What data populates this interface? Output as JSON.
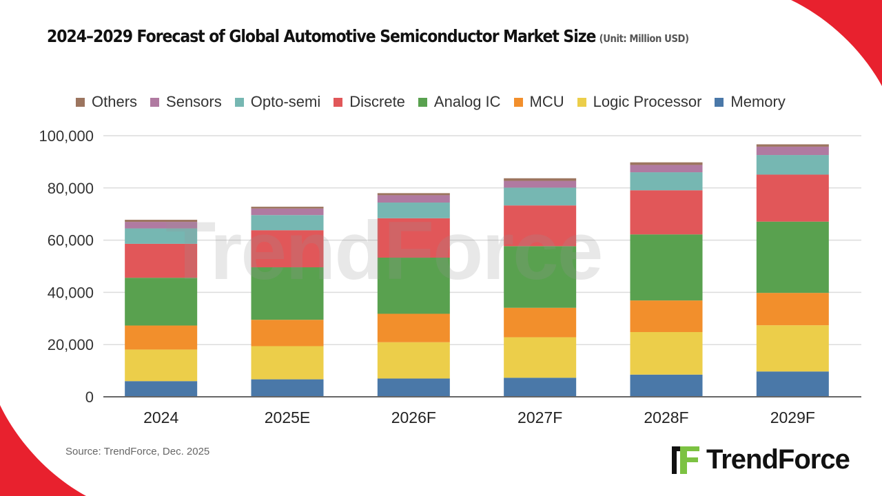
{
  "title": "2024–2029 Forecast of Global Automotive Semiconductor Market Size",
  "unit": "(Unit: Million USD)",
  "source": "Source: TrendForce, Dec.  2025",
  "logo_text": "TrendForce",
  "watermark_text": "TrendForce",
  "colors": {
    "accent_red": "#e8212e",
    "logo_green": "#7cc242"
  },
  "chart_data": {
    "type": "bar",
    "stacked": true,
    "title": "2024–2029 Forecast of Global Automotive Semiconductor Market Size",
    "subtitle": "(Unit: Million USD)",
    "xlabel": "",
    "ylabel": "",
    "ylim": [
      0,
      100000
    ],
    "yticks": [
      "0",
      "20,000",
      "40,000",
      "60,000",
      "80,000",
      "100,000"
    ],
    "ytick_values": [
      0,
      20000,
      40000,
      60000,
      80000,
      100000
    ],
    "grid": true,
    "legend_position": "top",
    "categories": [
      "2024",
      "2025E",
      "2026F",
      "2027F",
      "2028F",
      "2029F"
    ],
    "series": [
      {
        "name": "Memory",
        "color": "#4a78a8",
        "values": [
          6000,
          6700,
          7000,
          7300,
          8500,
          9700
        ]
      },
      {
        "name": "Logic Processor",
        "color": "#ecce4a",
        "values": [
          12100,
          12700,
          13900,
          15500,
          16300,
          17700
        ]
      },
      {
        "name": "MCU",
        "color": "#f28f2c",
        "values": [
          9200,
          10100,
          10900,
          11300,
          12100,
          12400
        ]
      },
      {
        "name": "Analog IC",
        "color": "#59a14f",
        "values": [
          18300,
          20100,
          21500,
          23600,
          25300,
          27300
        ]
      },
      {
        "name": "Discrete",
        "color": "#e15759",
        "values": [
          13000,
          14200,
          15100,
          15600,
          16900,
          18000
        ]
      },
      {
        "name": "Opto-semi",
        "color": "#76b7b2",
        "values": [
          5900,
          5800,
          6000,
          6800,
          6900,
          7500
        ]
      },
      {
        "name": "Sensors",
        "color": "#b07aa1",
        "values": [
          2500,
          2500,
          2800,
          2600,
          2800,
          3200
        ]
      },
      {
        "name": "Others",
        "color": "#9c755f",
        "values": [
          800,
          700,
          800,
          1000,
          1000,
          900
        ]
      }
    ],
    "legend_order": [
      "Others",
      "Sensors",
      "Opto-semi",
      "Discrete",
      "Analog IC",
      "MCU",
      "Logic Processor",
      "Memory"
    ]
  }
}
